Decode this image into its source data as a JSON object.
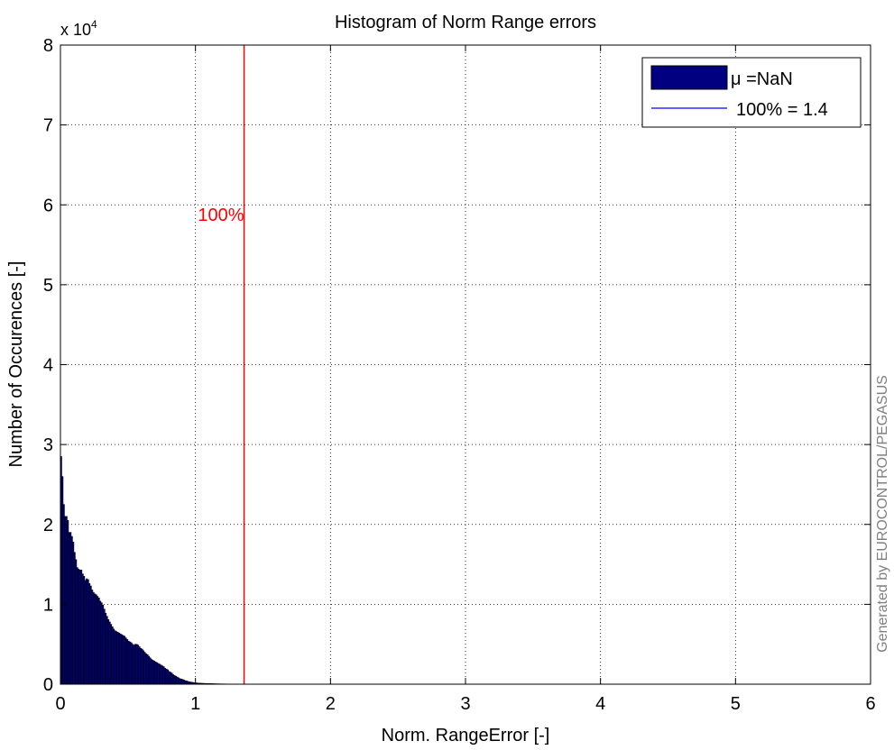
{
  "chart_data": {
    "type": "bar",
    "title": "Histogram of Norm Range errors",
    "xlabel": "Norm. RangeError [-]",
    "ylabel": "Number of Occurences [-]",
    "y_multiplier_label": "x 10",
    "y_multiplier_exponent": "4",
    "xlim": [
      0,
      6
    ],
    "ylim": [
      0,
      80000
    ],
    "x_ticks": [
      "0",
      "1",
      "2",
      "3",
      "4",
      "5",
      "6"
    ],
    "y_ticks": [
      "0",
      "1",
      "2",
      "3",
      "4",
      "5",
      "6",
      "7",
      "8"
    ],
    "grid": true,
    "bar_color": "#000080",
    "threshold_line": {
      "x": 1.36,
      "label": "100%",
      "color": "#ff0000"
    },
    "legend": {
      "placement": "top-right",
      "entries": [
        "μ =NaN",
        "100% = 1.4"
      ],
      "line_color": "#0000ff"
    },
    "watermark": "Generated by EUROCONTROL/PEGASUS",
    "bin_width": 0.01,
    "bins": [
      {
        "x": 0.005,
        "y": 28500
      },
      {
        "x": 0.015,
        "y": 26000
      },
      {
        "x": 0.025,
        "y": 22500
      },
      {
        "x": 0.035,
        "y": 21000
      },
      {
        "x": 0.045,
        "y": 21000
      },
      {
        "x": 0.055,
        "y": 20500
      },
      {
        "x": 0.065,
        "y": 19000
      },
      {
        "x": 0.075,
        "y": 19000
      },
      {
        "x": 0.085,
        "y": 18500
      },
      {
        "x": 0.095,
        "y": 17800
      },
      {
        "x": 0.105,
        "y": 16500
      },
      {
        "x": 0.115,
        "y": 15600
      },
      {
        "x": 0.125,
        "y": 14600
      },
      {
        "x": 0.135,
        "y": 14400
      },
      {
        "x": 0.145,
        "y": 14300
      },
      {
        "x": 0.155,
        "y": 14300
      },
      {
        "x": 0.165,
        "y": 13800
      },
      {
        "x": 0.175,
        "y": 13500
      },
      {
        "x": 0.185,
        "y": 13000
      },
      {
        "x": 0.195,
        "y": 13200
      },
      {
        "x": 0.205,
        "y": 13100
      },
      {
        "x": 0.215,
        "y": 12600
      },
      {
        "x": 0.225,
        "y": 12300
      },
      {
        "x": 0.235,
        "y": 11800
      },
      {
        "x": 0.245,
        "y": 11500
      },
      {
        "x": 0.255,
        "y": 11300
      },
      {
        "x": 0.265,
        "y": 11200
      },
      {
        "x": 0.275,
        "y": 11000
      },
      {
        "x": 0.285,
        "y": 10800
      },
      {
        "x": 0.295,
        "y": 10400
      },
      {
        "x": 0.305,
        "y": 10200
      },
      {
        "x": 0.315,
        "y": 9900
      },
      {
        "x": 0.325,
        "y": 9400
      },
      {
        "x": 0.335,
        "y": 8900
      },
      {
        "x": 0.345,
        "y": 8500
      },
      {
        "x": 0.355,
        "y": 8100
      },
      {
        "x": 0.365,
        "y": 7800
      },
      {
        "x": 0.375,
        "y": 7500
      },
      {
        "x": 0.385,
        "y": 7200
      },
      {
        "x": 0.395,
        "y": 6900
      },
      {
        "x": 0.405,
        "y": 6700
      },
      {
        "x": 0.415,
        "y": 6600
      },
      {
        "x": 0.425,
        "y": 6500
      },
      {
        "x": 0.435,
        "y": 6400
      },
      {
        "x": 0.445,
        "y": 6300
      },
      {
        "x": 0.455,
        "y": 6200
      },
      {
        "x": 0.465,
        "y": 6100
      },
      {
        "x": 0.475,
        "y": 6000
      },
      {
        "x": 0.485,
        "y": 5800
      },
      {
        "x": 0.495,
        "y": 5600
      },
      {
        "x": 0.505,
        "y": 5400
      },
      {
        "x": 0.515,
        "y": 5300
      },
      {
        "x": 0.525,
        "y": 5200
      },
      {
        "x": 0.535,
        "y": 5000
      },
      {
        "x": 0.545,
        "y": 4900
      },
      {
        "x": 0.555,
        "y": 5000
      },
      {
        "x": 0.565,
        "y": 5000
      },
      {
        "x": 0.575,
        "y": 4900
      },
      {
        "x": 0.585,
        "y": 4700
      },
      {
        "x": 0.595,
        "y": 4500
      },
      {
        "x": 0.605,
        "y": 4400
      },
      {
        "x": 0.615,
        "y": 4200
      },
      {
        "x": 0.625,
        "y": 4000
      },
      {
        "x": 0.635,
        "y": 3800
      },
      {
        "x": 0.645,
        "y": 3700
      },
      {
        "x": 0.655,
        "y": 3500
      },
      {
        "x": 0.665,
        "y": 3300
      },
      {
        "x": 0.675,
        "y": 3100
      },
      {
        "x": 0.685,
        "y": 3000
      },
      {
        "x": 0.695,
        "y": 2900
      },
      {
        "x": 0.705,
        "y": 2800
      },
      {
        "x": 0.715,
        "y": 2700
      },
      {
        "x": 0.725,
        "y": 2600
      },
      {
        "x": 0.735,
        "y": 2500
      },
      {
        "x": 0.745,
        "y": 2400
      },
      {
        "x": 0.755,
        "y": 2300
      },
      {
        "x": 0.765,
        "y": 2200
      },
      {
        "x": 0.775,
        "y": 2000
      },
      {
        "x": 0.785,
        "y": 1900
      },
      {
        "x": 0.795,
        "y": 1800
      },
      {
        "x": 0.805,
        "y": 1600
      },
      {
        "x": 0.815,
        "y": 1500
      },
      {
        "x": 0.825,
        "y": 1400
      },
      {
        "x": 0.835,
        "y": 1200
      },
      {
        "x": 0.845,
        "y": 1100
      },
      {
        "x": 0.855,
        "y": 1000
      },
      {
        "x": 0.865,
        "y": 900
      },
      {
        "x": 0.875,
        "y": 800
      },
      {
        "x": 0.885,
        "y": 700
      },
      {
        "x": 0.895,
        "y": 650
      },
      {
        "x": 0.905,
        "y": 600
      },
      {
        "x": 0.915,
        "y": 520
      },
      {
        "x": 0.925,
        "y": 450
      },
      {
        "x": 0.935,
        "y": 400
      },
      {
        "x": 0.945,
        "y": 350
      },
      {
        "x": 0.955,
        "y": 300
      },
      {
        "x": 0.965,
        "y": 270
      },
      {
        "x": 0.975,
        "y": 240
      },
      {
        "x": 0.985,
        "y": 210
      },
      {
        "x": 0.995,
        "y": 190
      },
      {
        "x": 1.005,
        "y": 170
      },
      {
        "x": 1.015,
        "y": 150
      },
      {
        "x": 1.025,
        "y": 140
      },
      {
        "x": 1.035,
        "y": 130
      },
      {
        "x": 1.045,
        "y": 120
      },
      {
        "x": 1.055,
        "y": 110
      },
      {
        "x": 1.065,
        "y": 100
      },
      {
        "x": 1.075,
        "y": 95
      },
      {
        "x": 1.085,
        "y": 90
      },
      {
        "x": 1.095,
        "y": 85
      },
      {
        "x": 1.105,
        "y": 80
      },
      {
        "x": 1.115,
        "y": 75
      },
      {
        "x": 1.125,
        "y": 70
      },
      {
        "x": 1.135,
        "y": 65
      },
      {
        "x": 1.145,
        "y": 60
      },
      {
        "x": 1.155,
        "y": 55
      },
      {
        "x": 1.165,
        "y": 50
      },
      {
        "x": 1.175,
        "y": 45
      },
      {
        "x": 1.185,
        "y": 42
      },
      {
        "x": 1.195,
        "y": 40
      },
      {
        "x": 1.205,
        "y": 38
      },
      {
        "x": 1.215,
        "y": 35
      },
      {
        "x": 1.225,
        "y": 32
      },
      {
        "x": 1.235,
        "y": 30
      },
      {
        "x": 1.245,
        "y": 28
      },
      {
        "x": 1.255,
        "y": 25
      },
      {
        "x": 1.265,
        "y": 22
      },
      {
        "x": 1.275,
        "y": 20
      },
      {
        "x": 1.285,
        "y": 18
      },
      {
        "x": 1.295,
        "y": 15
      },
      {
        "x": 1.305,
        "y": 12
      },
      {
        "x": 1.315,
        "y": 10
      },
      {
        "x": 1.325,
        "y": 8
      },
      {
        "x": 1.335,
        "y": 6
      },
      {
        "x": 1.345,
        "y": 5
      }
    ]
  }
}
